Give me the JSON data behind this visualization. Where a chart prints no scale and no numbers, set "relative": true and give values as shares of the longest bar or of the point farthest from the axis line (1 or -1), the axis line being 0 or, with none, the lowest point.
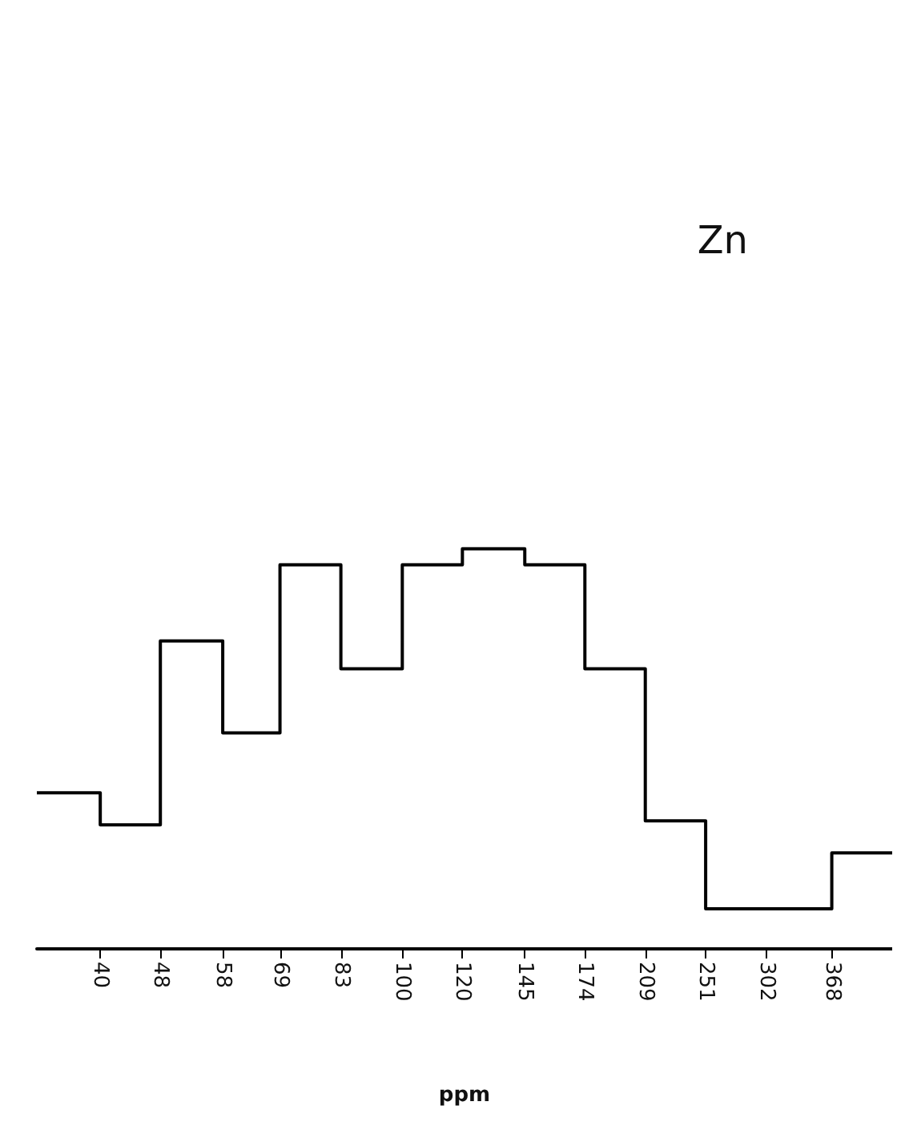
{
  "chart_data": {
    "type": "step",
    "relative": true,
    "xlabel": "ppm",
    "annotations": [
      "Zn"
    ],
    "log": "x",
    "color": "#000000",
    "x": [
      33,
      40,
      48,
      58,
      69,
      83,
      100,
      120,
      145,
      174,
      209,
      251,
      302,
      368,
      442
    ],
    "values": [
      0.39,
      0.31,
      0.77,
      0.54,
      0.96,
      0.7,
      0.96,
      1,
      0.96,
      0.7,
      0.32,
      0.1,
      0.1,
      0.24,
      0.24
    ],
    "xlim": [
      33,
      442
    ],
    "xticks": [
      40,
      48,
      58,
      69,
      83,
      100,
      120,
      145,
      174,
      209,
      251,
      302,
      368
    ],
    "grid": false
  }
}
